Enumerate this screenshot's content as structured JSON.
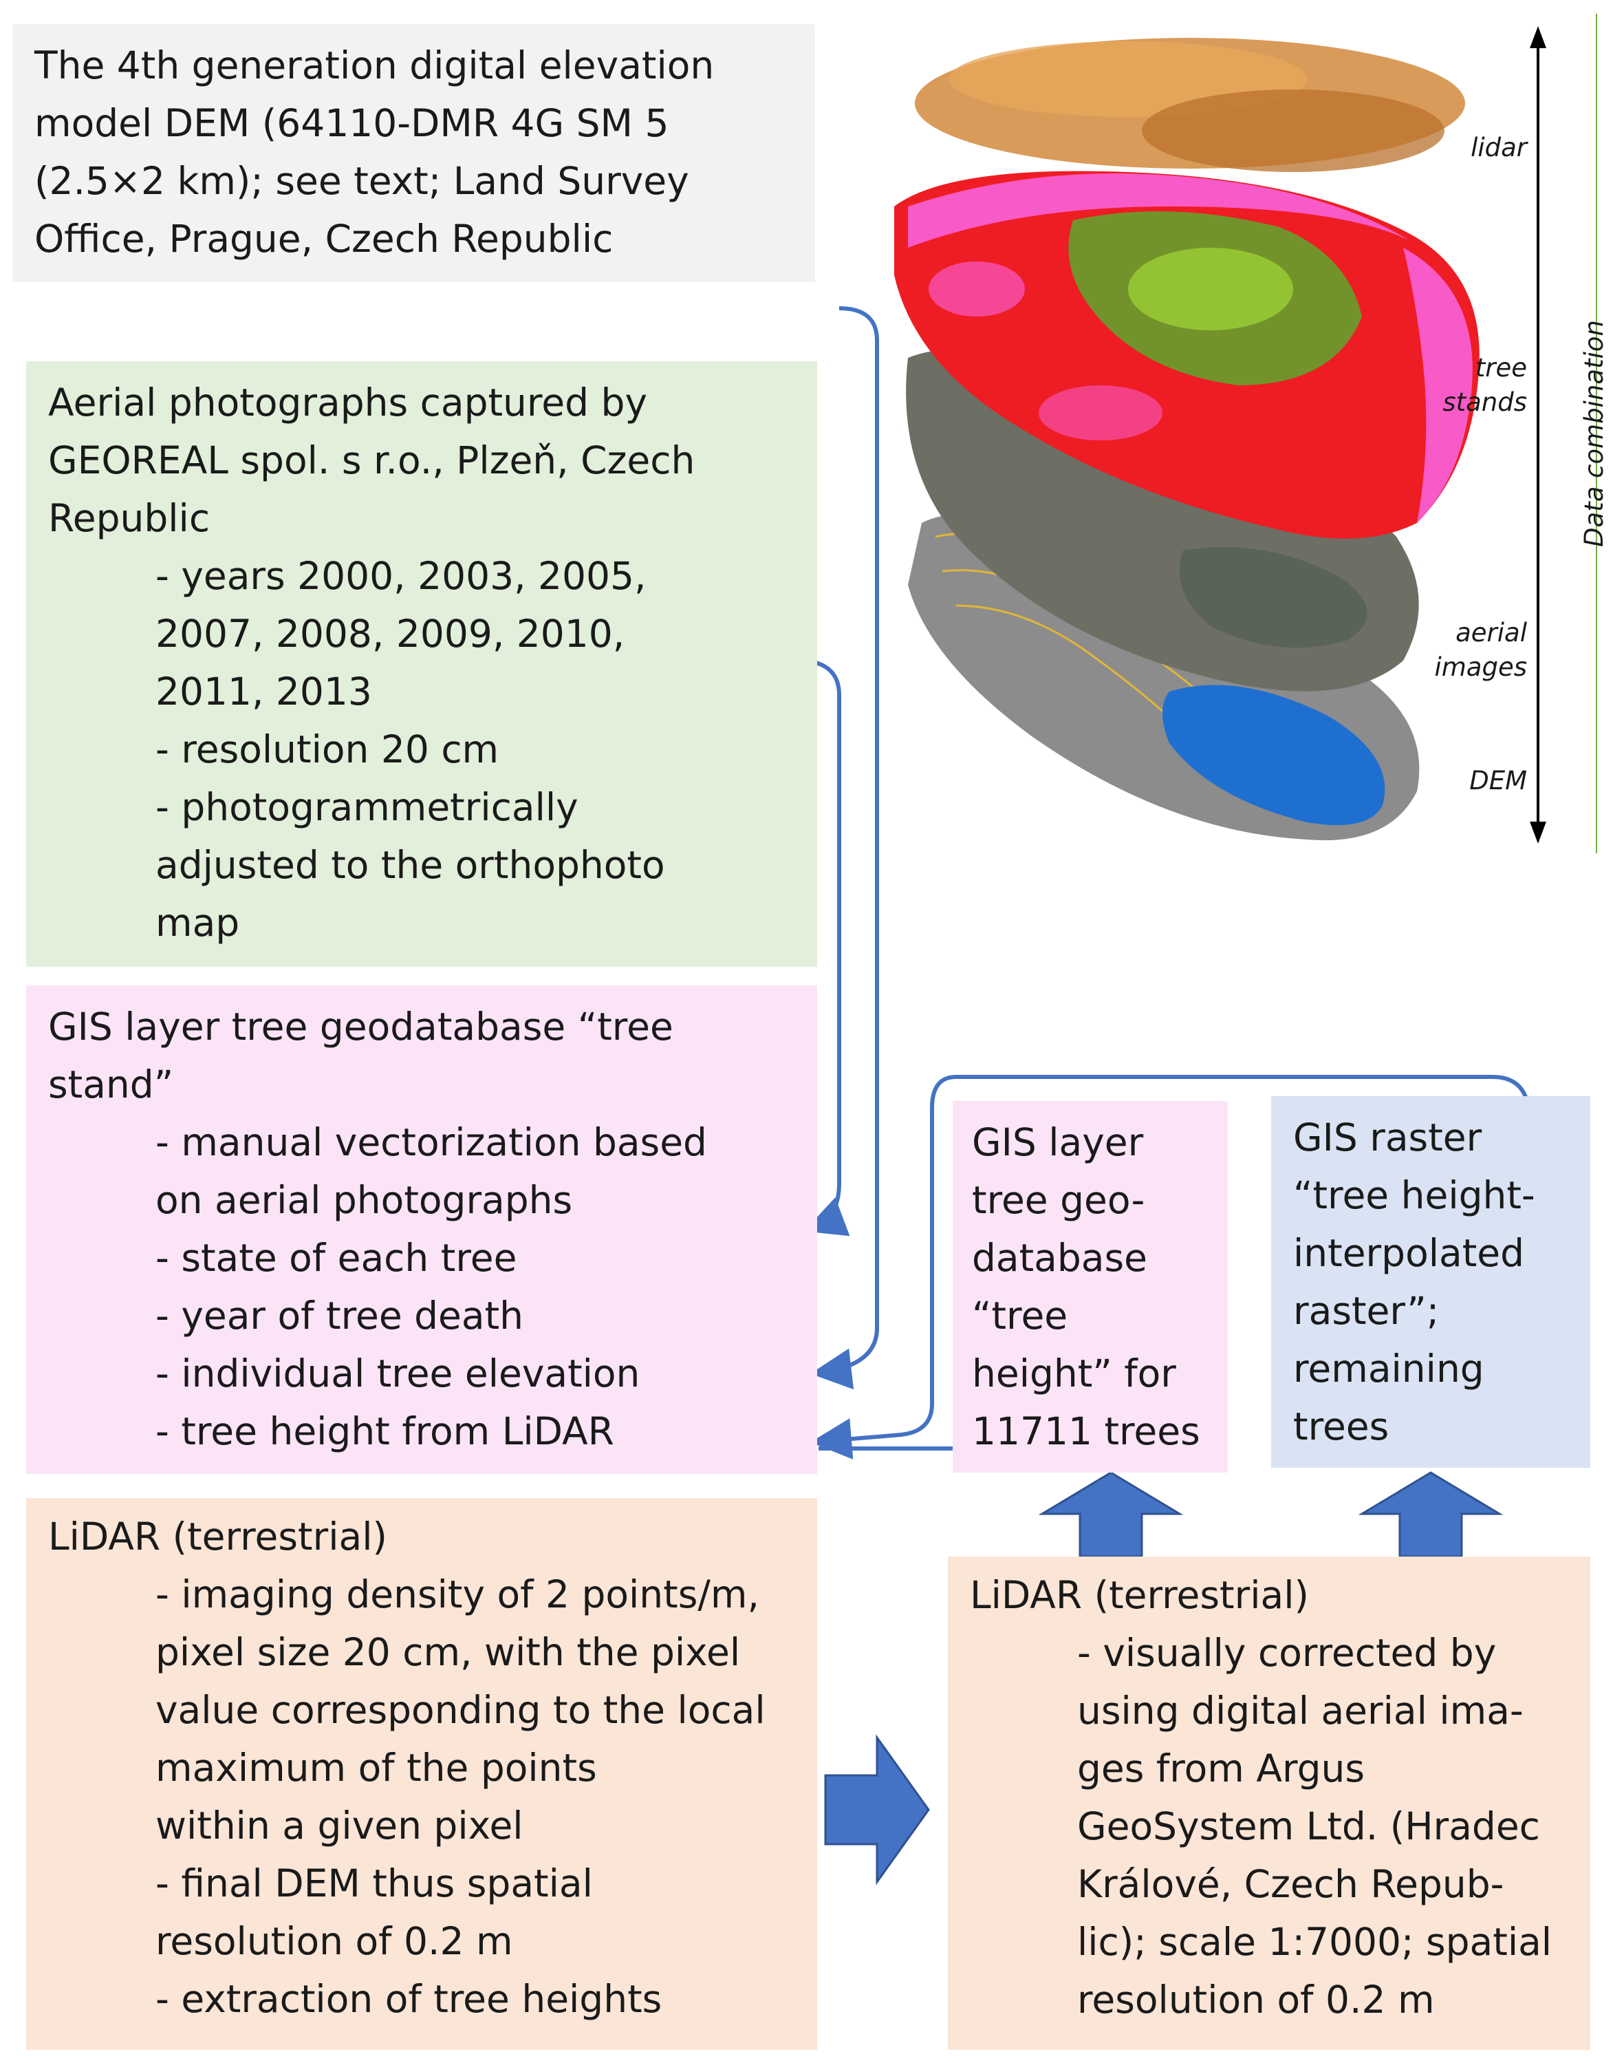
{
  "dem_box": {
    "lines": [
      "The 4th generation digital elevation",
      "model DEM (64110-DMR 4G SM 5",
      "(2.5×2 km); see text; Land Survey",
      "Office, Prague, Czech Republic"
    ]
  },
  "aerial_box": {
    "title_lines": [
      "Aerial photographs captured by",
      "GEOREAL spol. s r.o., Plzeň, Czech",
      "Republic"
    ],
    "bullet_lines": [
      "- years 2000, 2003, 2005,",
      "2007, 2008, 2009, 2010,",
      "2011, 2013",
      "- resolution 20 cm",
      "- photogrammetrically",
      "adjusted to the orthophoto",
      "map"
    ]
  },
  "gis_stand_box": {
    "title_lines": [
      "GIS layer tree geodatabase “tree",
      "stand”"
    ],
    "bullet_lines": [
      "- manual vectorization based",
      "on aerial photographs",
      "- state of each tree",
      "- year of tree death",
      "- individual tree elevation",
      "- tree height from LiDAR"
    ]
  },
  "lidar_left_box": {
    "title_lines": [
      "LiDAR (terrestrial)"
    ],
    "bullet_lines": [
      "- imaging density of 2 points/m,",
      "pixel size 20 cm, with the pixel",
      "value corresponding to the local",
      "maximum of the points",
      "within a given pixel",
      "- final DEM thus spatial",
      "resolution of 0.2 m",
      "- extraction of tree heights"
    ]
  },
  "gis_height_box": {
    "lines": [
      "GIS layer",
      "tree geo-",
      "database",
      "“tree",
      "height” for",
      "11711 trees"
    ]
  },
  "gis_raster_box": {
    "lines": [
      "GIS raster",
      "“tree height-",
      "interpolated",
      "raster”;",
      "remaining",
      "trees"
    ]
  },
  "lidar_right_box": {
    "title_lines": [
      "LiDAR (terrestrial)"
    ],
    "bullet_lines": [
      "- visually corrected      by",
      "using digital aerial ima-",
      "ges from Argus",
      "GeoSystem Ltd.  (Hradec",
      "Králové, Czech    Repub-",
      "lic); scale 1:7000; spatial",
      "resolution of 0.2 m"
    ]
  },
  "figure": {
    "layer_labels": [
      "lidar",
      "tree\nstands",
      "aerial\nimages",
      "DEM"
    ],
    "layer_label_lines": {
      "lidar": [
        "lidar"
      ],
      "tree_stands": [
        "tree",
        "stands"
      ],
      "aerial_images": [
        "aerial",
        "images"
      ],
      "dem": [
        "DEM"
      ]
    },
    "axis_label": "Data combination"
  },
  "colors": {
    "gray_box": "#f2f2f2",
    "green_box": "#e2efda",
    "pink_box": "#fbe4f8",
    "blue_box": "#dae3f3",
    "orange_box": "#fbe5d6",
    "connector": "#4472c4",
    "arrow_fill": "#4472c4"
  }
}
